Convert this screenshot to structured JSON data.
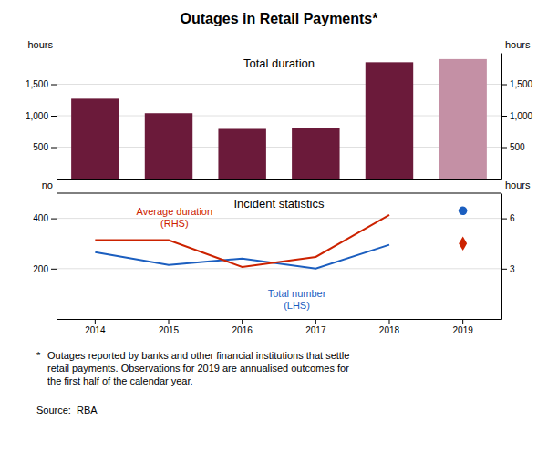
{
  "chart_data": [
    {
      "type": "bar",
      "title": "Outages in Retail Payments*",
      "subtitle": "Total duration",
      "categories": [
        "2014",
        "2015",
        "2016",
        "2017",
        "2018",
        "2019"
      ],
      "values": [
        1270,
        1040,
        790,
        800,
        1850,
        1900
      ],
      "colors": [
        "#6B1A3A",
        "#6B1A3A",
        "#6B1A3A",
        "#6B1A3A",
        "#6B1A3A",
        "#C490A5"
      ],
      "ylabel": "hours",
      "y2label": "hours",
      "ylim": [
        0,
        2000
      ],
      "yticks": [
        500,
        {
          "value": 1000,
          "label": "1,000"
        },
        {
          "value": 1500,
          "label": "1,500"
        }
      ],
      "y2lim": [
        0,
        2000
      ],
      "y2ticks": [
        500,
        {
          "value": 1000,
          "label": "1,000"
        },
        {
          "value": 1500,
          "label": "1,500"
        }
      ],
      "grid": true,
      "tick_labels": "y"
    },
    {
      "type": "line",
      "subtitle": "Incident statistics",
      "categories": [
        "2014",
        "2015",
        "2016",
        "2017",
        "2018",
        "2019"
      ],
      "series": [
        {
          "name": "Total number\n(LHS)",
          "color": "#1B5EBF",
          "type": "line",
          "values": [
            265,
            215,
            240,
            200,
            295,
            null
          ]
        },
        {
          "name": "Average duration\n(RHS)",
          "color": "#CC2200",
          "type": "line",
          "axis": "y2",
          "values": [
            4.7,
            4.7,
            3.1,
            3.7,
            6.2,
            null
          ]
        },
        {
          "color": "#1B5EBF",
          "type": "scatter",
          "marker": "circle",
          "values": [
            null,
            null,
            null,
            null,
            null,
            430
          ]
        },
        {
          "color": "#CC2200",
          "type": "scatter",
          "marker": "diamond",
          "axis": "y2",
          "values": [
            null,
            null,
            null,
            null,
            null,
            4.5
          ]
        }
      ],
      "ylabel": "no",
      "y2label": "hours",
      "ylim": [
        0,
        500
      ],
      "yticks": [
        200,
        400
      ],
      "y2lim": [
        0,
        7.5
      ],
      "y2ticks": [
        3,
        6
      ],
      "grid": true,
      "annotations": [
        "*",
        "Outages reported by banks and other financial institutions that settle\nretail payments. Observations for 2019 are annualised outcomes for\nthe first half of the calendar year.",
        "Source:  RBA"
      ]
    }
  ]
}
